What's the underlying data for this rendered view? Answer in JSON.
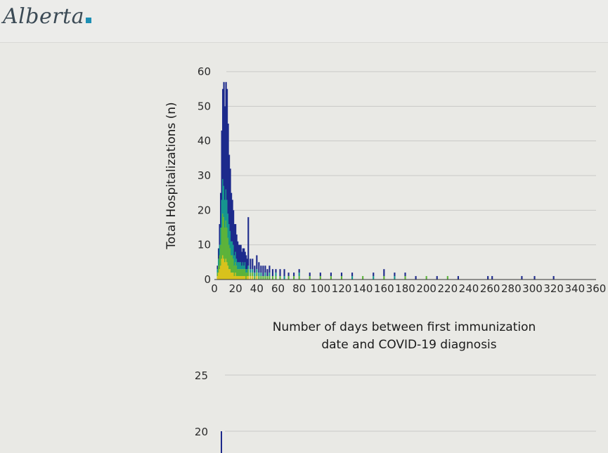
{
  "header": {
    "logo_text": "Alberta"
  },
  "chart_data": [
    {
      "type": "bar",
      "stacked": true,
      "title": "",
      "xlabel_lines": [
        "Number of days between first immunization",
        "date and COVID-19 diagnosis"
      ],
      "ylabel": "Total Hospitalizations (n)",
      "xlim": [
        0,
        360
      ],
      "ylim": [
        0,
        60
      ],
      "x_ticks": [
        0,
        20,
        40,
        60,
        80,
        100,
        120,
        140,
        160,
        180,
        200,
        220,
        240,
        260,
        280,
        300,
        320,
        340,
        360
      ],
      "y_ticks": [
        0,
        10,
        20,
        30,
        40,
        50,
        60
      ],
      "grid": true,
      "series_colors": [
        "#d8c21c",
        "#5cb33a",
        "#17968e",
        "#1d2a8c"
      ],
      "x": [
        3,
        4,
        5,
        6,
        7,
        8,
        9,
        10,
        11,
        12,
        13,
        14,
        15,
        16,
        17,
        18,
        19,
        20,
        21,
        22,
        23,
        24,
        25,
        26,
        27,
        28,
        29,
        30,
        31,
        32,
        34,
        36,
        38,
        40,
        42,
        44,
        46,
        48,
        50,
        52,
        55,
        58,
        62,
        66,
        70,
        75,
        80,
        90,
        100,
        110,
        120,
        130,
        140,
        150,
        160,
        170,
        180,
        190,
        200,
        210,
        220,
        230,
        258,
        262,
        290,
        302,
        320
      ],
      "series": [
        {
          "values": [
            1,
            2,
            3,
            4,
            6,
            7,
            6,
            5,
            6,
            5,
            4,
            3,
            3,
            2,
            2,
            2,
            1,
            2,
            1,
            1,
            1,
            1,
            1,
            1,
            1,
            1,
            1,
            0,
            1,
            1,
            1,
            1,
            0,
            1,
            0,
            0,
            0,
            0,
            0,
            0,
            0,
            0,
            0,
            0,
            0,
            0,
            0,
            0,
            0,
            0,
            0,
            0,
            0,
            0,
            0,
            0,
            0,
            0,
            0,
            0,
            0,
            0,
            0,
            0,
            0,
            0,
            0
          ]
        },
        {
          "values": [
            1,
            2,
            4,
            6,
            9,
            12,
            12,
            10,
            11,
            10,
            8,
            7,
            6,
            5,
            5,
            4,
            3,
            3,
            3,
            2,
            2,
            2,
            2,
            2,
            2,
            2,
            2,
            2,
            1,
            2,
            1,
            1,
            1,
            1,
            1,
            1,
            1,
            1,
            1,
            1,
            1,
            1,
            1,
            0,
            1,
            1,
            1,
            1,
            1,
            1,
            1,
            0,
            1,
            0,
            1,
            0,
            1,
            0,
            1,
            0,
            1,
            0,
            0,
            0,
            0,
            0,
            0
          ]
        },
        {
          "values": [
            1,
            2,
            3,
            5,
            8,
            10,
            9,
            8,
            9,
            8,
            7,
            6,
            5,
            4,
            4,
            4,
            3,
            3,
            2,
            2,
            2,
            2,
            2,
            1,
            2,
            1,
            2,
            1,
            1,
            1,
            1,
            1,
            1,
            1,
            1,
            1,
            0,
            1,
            0,
            1,
            0,
            1,
            0,
            1,
            0,
            0,
            1,
            0,
            0,
            0,
            0,
            1,
            0,
            1,
            0,
            1,
            0,
            0,
            0,
            0,
            0,
            0,
            0,
            0,
            0,
            0,
            0
          ]
        },
        {
          "values": [
            1,
            3,
            6,
            10,
            20,
            26,
            30,
            27,
            31,
            32,
            26,
            20,
            18,
            14,
            12,
            10,
            9,
            8,
            7,
            6,
            5,
            5,
            5,
            4,
            4,
            5,
            3,
            4,
            3,
            14,
            3,
            3,
            2,
            4,
            3,
            2,
            3,
            2,
            2,
            2,
            2,
            1,
            2,
            2,
            1,
            1,
            1,
            1,
            1,
            1,
            1,
            1,
            0,
            1,
            2,
            1,
            1,
            1,
            0,
            1,
            0,
            1,
            1,
            1,
            1,
            1,
            1
          ]
        }
      ]
    },
    {
      "type": "bar",
      "title": "",
      "y_ticks": [
        20,
        25
      ]
    }
  ]
}
